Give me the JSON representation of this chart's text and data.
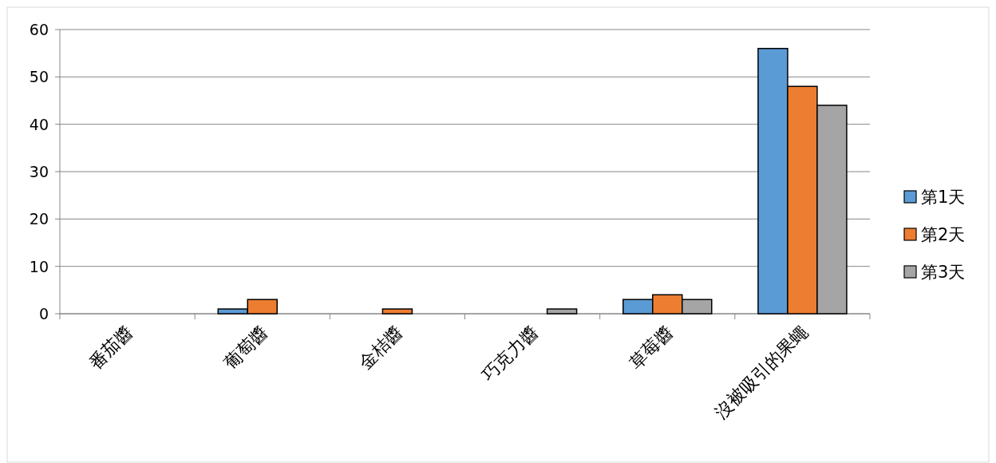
{
  "chart_data": {
    "type": "bar",
    "categories": [
      "番茄醬",
      "葡萄醬",
      "金桔醬",
      "巧克力醬",
      "草莓醬",
      "沒被吸引的果蠅"
    ],
    "series": [
      {
        "name": "第1天",
        "color": "#5b9bd5",
        "values": [
          0,
          1,
          0,
          0,
          3,
          56
        ]
      },
      {
        "name": "第2天",
        "color": "#ed7d31",
        "values": [
          0,
          3,
          1,
          0,
          4,
          48
        ]
      },
      {
        "name": "第3天",
        "color": "#a5a5a5",
        "values": [
          0,
          0,
          0,
          1,
          3,
          44
        ]
      }
    ],
    "ylim": [
      0,
      60
    ],
    "yticks": [
      0,
      10,
      20,
      30,
      40,
      50,
      60
    ],
    "grid": "y",
    "legend": "right"
  }
}
